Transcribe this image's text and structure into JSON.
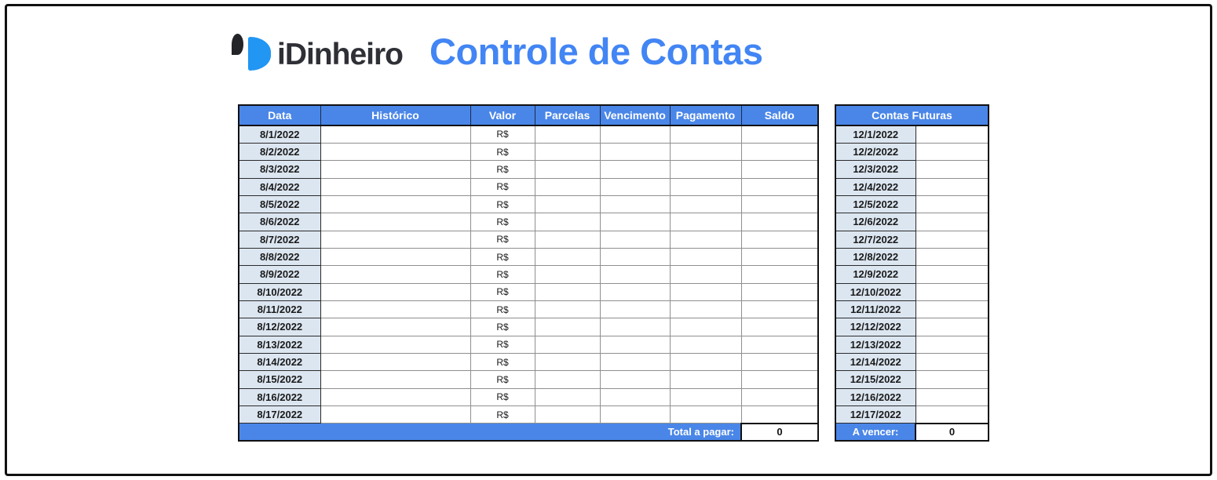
{
  "logo": {
    "brand": "iDinheiro",
    "title": "Controle de Contas",
    "mark_icon": "idinheiro-comma-d-icon"
  },
  "colors": {
    "header_blue": "#4a86e8",
    "date_cell_blue": "#dce6f1",
    "title_blue": "#4285f4",
    "logo_blue": "#2196f3",
    "logo_dark": "#222428",
    "grid_gray": "#8f8f8f",
    "border_dark": "#111111"
  },
  "main_table": {
    "headers": [
      "Data",
      "Histórico",
      "Valor",
      "Parcelas",
      "Vencimento",
      "Pagamento",
      "Saldo"
    ],
    "rows": [
      {
        "data": "8/1/2022",
        "historico": "",
        "valor": "R$",
        "parcelas": "",
        "vencimento": "",
        "pagamento": "",
        "saldo": ""
      },
      {
        "data": "8/2/2022",
        "historico": "",
        "valor": "R$",
        "parcelas": "",
        "vencimento": "",
        "pagamento": "",
        "saldo": ""
      },
      {
        "data": "8/3/2022",
        "historico": "",
        "valor": "R$",
        "parcelas": "",
        "vencimento": "",
        "pagamento": "",
        "saldo": ""
      },
      {
        "data": "8/4/2022",
        "historico": "",
        "valor": "R$",
        "parcelas": "",
        "vencimento": "",
        "pagamento": "",
        "saldo": ""
      },
      {
        "data": "8/5/2022",
        "historico": "",
        "valor": "R$",
        "parcelas": "",
        "vencimento": "",
        "pagamento": "",
        "saldo": ""
      },
      {
        "data": "8/6/2022",
        "historico": "",
        "valor": "R$",
        "parcelas": "",
        "vencimento": "",
        "pagamento": "",
        "saldo": ""
      },
      {
        "data": "8/7/2022",
        "historico": "",
        "valor": "R$",
        "parcelas": "",
        "vencimento": "",
        "pagamento": "",
        "saldo": ""
      },
      {
        "data": "8/8/2022",
        "historico": "",
        "valor": "R$",
        "parcelas": "",
        "vencimento": "",
        "pagamento": "",
        "saldo": ""
      },
      {
        "data": "8/9/2022",
        "historico": "",
        "valor": "R$",
        "parcelas": "",
        "vencimento": "",
        "pagamento": "",
        "saldo": ""
      },
      {
        "data": "8/10/2022",
        "historico": "",
        "valor": "R$",
        "parcelas": "",
        "vencimento": "",
        "pagamento": "",
        "saldo": ""
      },
      {
        "data": "8/11/2022",
        "historico": "",
        "valor": "R$",
        "parcelas": "",
        "vencimento": "",
        "pagamento": "",
        "saldo": ""
      },
      {
        "data": "8/12/2022",
        "historico": "",
        "valor": "R$",
        "parcelas": "",
        "vencimento": "",
        "pagamento": "",
        "saldo": ""
      },
      {
        "data": "8/13/2022",
        "historico": "",
        "valor": "R$",
        "parcelas": "",
        "vencimento": "",
        "pagamento": "",
        "saldo": ""
      },
      {
        "data": "8/14/2022",
        "historico": "",
        "valor": "R$",
        "parcelas": "",
        "vencimento": "",
        "pagamento": "",
        "saldo": ""
      },
      {
        "data": "8/15/2022",
        "historico": "",
        "valor": "R$",
        "parcelas": "",
        "vencimento": "",
        "pagamento": "",
        "saldo": ""
      },
      {
        "data": "8/16/2022",
        "historico": "",
        "valor": "R$",
        "parcelas": "",
        "vencimento": "",
        "pagamento": "",
        "saldo": ""
      },
      {
        "data": "8/17/2022",
        "historico": "",
        "valor": "R$",
        "parcelas": "",
        "vencimento": "",
        "pagamento": "",
        "saldo": ""
      }
    ],
    "footer": {
      "label": "Total a pagar:",
      "value": "0"
    }
  },
  "future_table": {
    "header": "Contas Futuras",
    "rows": [
      {
        "data": "12/1/2022",
        "valor": ""
      },
      {
        "data": "12/2/2022",
        "valor": ""
      },
      {
        "data": "12/3/2022",
        "valor": ""
      },
      {
        "data": "12/4/2022",
        "valor": ""
      },
      {
        "data": "12/5/2022",
        "valor": ""
      },
      {
        "data": "12/6/2022",
        "valor": ""
      },
      {
        "data": "12/7/2022",
        "valor": ""
      },
      {
        "data": "12/8/2022",
        "valor": ""
      },
      {
        "data": "12/9/2022",
        "valor": ""
      },
      {
        "data": "12/10/2022",
        "valor": ""
      },
      {
        "data": "12/11/2022",
        "valor": ""
      },
      {
        "data": "12/12/2022",
        "valor": ""
      },
      {
        "data": "12/13/2022",
        "valor": ""
      },
      {
        "data": "12/14/2022",
        "valor": ""
      },
      {
        "data": "12/15/2022",
        "valor": ""
      },
      {
        "data": "12/16/2022",
        "valor": ""
      },
      {
        "data": "12/17/2022",
        "valor": ""
      }
    ],
    "footer": {
      "label": "A vencer:",
      "value": "0"
    }
  }
}
